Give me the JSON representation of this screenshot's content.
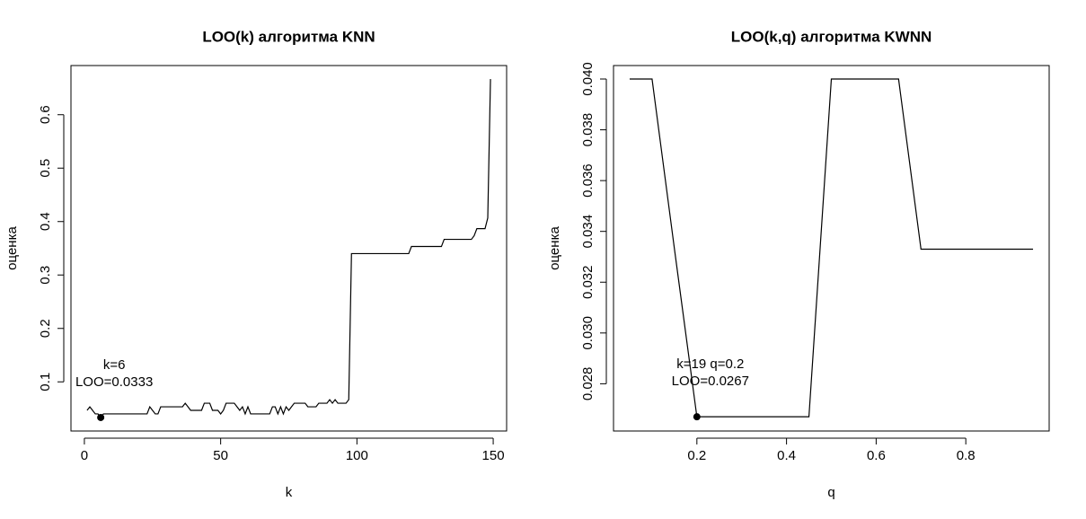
{
  "chart_data": [
    {
      "type": "line",
      "title": "LOO(k) алгоритма KNN",
      "x_label": "k",
      "y_label": "оценка",
      "x": [
        1,
        2,
        3,
        4,
        5,
        6,
        7,
        8,
        9,
        10,
        11,
        12,
        13,
        14,
        15,
        16,
        17,
        18,
        19,
        20,
        21,
        22,
        23,
        24,
        25,
        26,
        27,
        28,
        29,
        30,
        31,
        32,
        33,
        34,
        35,
        36,
        37,
        38,
        39,
        40,
        41,
        42,
        43,
        44,
        45,
        46,
        47,
        48,
        49,
        50,
        51,
        52,
        53,
        54,
        55,
        56,
        57,
        58,
        59,
        60,
        61,
        62,
        63,
        64,
        65,
        66,
        67,
        68,
        69,
        70,
        71,
        72,
        73,
        74,
        75,
        76,
        77,
        78,
        79,
        80,
        81,
        82,
        83,
        84,
        85,
        86,
        87,
        88,
        89,
        90,
        91,
        92,
        93,
        94,
        95,
        96,
        97,
        98,
        99,
        100,
        101,
        102,
        103,
        104,
        105,
        106,
        107,
        108,
        109,
        110,
        111,
        112,
        113,
        114,
        115,
        116,
        117,
        118,
        119,
        120,
        121,
        122,
        123,
        124,
        125,
        126,
        127,
        128,
        129,
        130,
        131,
        132,
        133,
        134,
        135,
        136,
        137,
        138,
        139,
        140,
        141,
        142,
        143,
        144,
        145,
        146,
        147,
        148,
        149
      ],
      "values": [
        0.0467,
        0.0533,
        0.0467,
        0.04,
        0.04,
        0.0333,
        0.04,
        0.04,
        0.04,
        0.04,
        0.04,
        0.04,
        0.04,
        0.04,
        0.04,
        0.04,
        0.04,
        0.04,
        0.04,
        0.04,
        0.04,
        0.04,
        0.04,
        0.0533,
        0.0467,
        0.04,
        0.04,
        0.0533,
        0.0533,
        0.0533,
        0.0533,
        0.0533,
        0.0533,
        0.0533,
        0.0533,
        0.0533,
        0.06,
        0.0533,
        0.0467,
        0.0467,
        0.0467,
        0.0467,
        0.0467,
        0.06,
        0.06,
        0.06,
        0.0467,
        0.0467,
        0.0467,
        0.04,
        0.0467,
        0.06,
        0.06,
        0.06,
        0.06,
        0.0533,
        0.0467,
        0.0533,
        0.04,
        0.0533,
        0.04,
        0.04,
        0.04,
        0.04,
        0.04,
        0.04,
        0.04,
        0.04,
        0.0533,
        0.0533,
        0.04,
        0.0533,
        0.04,
        0.0533,
        0.0467,
        0.0533,
        0.06,
        0.06,
        0.06,
        0.06,
        0.06,
        0.0533,
        0.0533,
        0.0533,
        0.0533,
        0.06,
        0.06,
        0.06,
        0.06,
        0.0667,
        0.06,
        0.0667,
        0.06,
        0.06,
        0.06,
        0.06,
        0.0667,
        0.34,
        0.34,
        0.34,
        0.34,
        0.34,
        0.34,
        0.34,
        0.34,
        0.34,
        0.34,
        0.34,
        0.34,
        0.34,
        0.34,
        0.34,
        0.34,
        0.34,
        0.34,
        0.34,
        0.34,
        0.34,
        0.34,
        0.3533,
        0.3533,
        0.3533,
        0.3533,
        0.3533,
        0.3533,
        0.3533,
        0.3533,
        0.3533,
        0.3533,
        0.3533,
        0.3533,
        0.3667,
        0.3667,
        0.3667,
        0.3667,
        0.3667,
        0.3667,
        0.3667,
        0.3667,
        0.3667,
        0.3667,
        0.3667,
        0.3733,
        0.3867,
        0.3867,
        0.3867,
        0.3867,
        0.4067,
        0.6667
      ],
      "color": "#000000",
      "xlim": [
        -4.92,
        154.92
      ],
      "ylim": [
        0.008,
        0.692
      ],
      "xticks": [
        0,
        50,
        100,
        150
      ],
      "yticks": [
        0.1,
        0.2,
        0.3,
        0.4,
        0.5,
        0.6
      ],
      "highlight": {
        "x": 6,
        "y": 0.0333
      },
      "annotation": [
        "k=6",
        "LOO=0.0333"
      ]
    },
    {
      "type": "line",
      "title": "LOO(k,q) алгоритма KWNN",
      "x_label": "q",
      "y_label": "оценка",
      "x": [
        0.05,
        0.1,
        0.15,
        0.2,
        0.25,
        0.3,
        0.35,
        0.4,
        0.45,
        0.5,
        0.55,
        0.6,
        0.65,
        0.7,
        0.75,
        0.8,
        0.85,
        0.9,
        0.95
      ],
      "values": [
        0.04,
        0.04,
        0.0333,
        0.0267,
        0.0267,
        0.0267,
        0.0267,
        0.0267,
        0.0267,
        0.04,
        0.04,
        0.04,
        0.04,
        0.0333,
        0.0333,
        0.0333,
        0.0333,
        0.0333,
        0.0333
      ],
      "color": "#000000",
      "xlim": [
        0.014,
        0.986
      ],
      "ylim": [
        0.02614,
        0.04053
      ],
      "xticks": [
        0.2,
        0.4,
        0.6,
        0.8
      ],
      "yticks": [
        {
          "value": 0.028,
          "label": "0.028"
        },
        {
          "value": 0.03,
          "label": "0.030"
        },
        {
          "value": 0.032,
          "label": "0.032"
        },
        {
          "value": 0.034,
          "label": "0.034"
        },
        {
          "value": 0.036,
          "label": "0.036"
        },
        {
          "value": 0.038,
          "label": "0.038"
        },
        {
          "value": 0.04,
          "label": "0.040"
        }
      ],
      "highlight": {
        "x": 0.2,
        "y": 0.0267
      },
      "annotation": [
        "k=19 q=0.2",
        "LOO=0.0267"
      ]
    }
  ]
}
